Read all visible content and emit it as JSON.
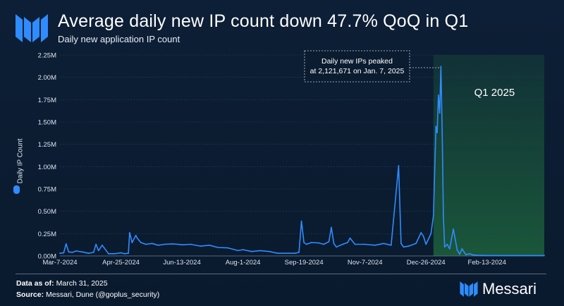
{
  "header": {
    "title": "Average daily new IP count down 47.7% QoQ in Q1",
    "subtitle": "Daily new application IP count"
  },
  "footer": {
    "data_as_of_label": "Data as of:",
    "data_as_of_value": "March 31, 2025",
    "source_label": "Source:",
    "source_value": "Messari, Dune (@goplus_security)"
  },
  "brand": {
    "name": "Messari"
  },
  "colors": {
    "line": "#2f8cff",
    "q1_shade": "#1f6b3e",
    "background": "#0b1c31",
    "grid": "#2a3d55"
  },
  "chart_data": {
    "type": "line",
    "title": "Average daily new IP count down 47.7% QoQ in Q1",
    "subtitle": "Daily new application IP count",
    "ylabel": "Daily IP Count",
    "xlabel": "",
    "y_ticks": [
      "0.00M",
      "0.25M",
      "0.50M",
      "0.75M",
      "1.00M",
      "1.25M",
      "1.50M",
      "1.75M",
      "2.00M",
      "2.25M"
    ],
    "x_ticks": [
      "Mar-7-2024",
      "Apr-25-2024",
      "Jun-13-2024",
      "Aug-1-2024",
      "Sep-19-2024",
      "Nov-7-2024",
      "Dec-26-2024",
      "Feb-13-2024"
    ],
    "ylim": [
      0,
      2250000
    ],
    "grid": true,
    "legend": "none",
    "series": [
      {
        "x": [
          "2024-03-07",
          "2024-03-10",
          "2024-03-12",
          "2024-03-14",
          "2024-03-17",
          "2024-03-20",
          "2024-03-25",
          "2024-03-30",
          "2024-04-03",
          "2024-04-05",
          "2024-04-07",
          "2024-04-10",
          "2024-04-15",
          "2024-04-20",
          "2024-04-25",
          "2024-04-28",
          "2024-05-01",
          "2024-05-02",
          "2024-05-04",
          "2024-05-07",
          "2024-05-08",
          "2024-05-11",
          "2024-05-15",
          "2024-05-20",
          "2024-05-25",
          "2024-05-30",
          "2024-06-05",
          "2024-06-10",
          "2024-06-13",
          "2024-06-20",
          "2024-06-28",
          "2024-07-05",
          "2024-07-12",
          "2024-07-20",
          "2024-07-28",
          "2024-08-01",
          "2024-08-08",
          "2024-08-15",
          "2024-08-22",
          "2024-08-29",
          "2024-09-05",
          "2024-09-12",
          "2024-09-15",
          "2024-09-17",
          "2024-09-19",
          "2024-09-21",
          "2024-09-25",
          "2024-10-01",
          "2024-10-05",
          "2024-10-09",
          "2024-10-11",
          "2024-10-13",
          "2024-10-15",
          "2024-10-20",
          "2024-10-24",
          "2024-10-26",
          "2024-10-30",
          "2024-11-07",
          "2024-11-15",
          "2024-11-22",
          "2024-11-28",
          "2024-12-04",
          "2024-12-06",
          "2024-12-08",
          "2024-12-12",
          "2024-12-18",
          "2024-12-22",
          "2024-12-24",
          "2024-12-26",
          "2024-12-28",
          "2024-12-30",
          "2025-01-01",
          "2025-01-03",
          "2025-01-04",
          "2025-01-05",
          "2025-01-06",
          "2025-01-07",
          "2025-01-08",
          "2025-01-09",
          "2025-01-10",
          "2025-01-12",
          "2025-01-14",
          "2025-01-17",
          "2025-01-20",
          "2025-01-22",
          "2025-01-24",
          "2025-01-27",
          "2025-01-30",
          "2025-02-02",
          "2025-02-05",
          "2025-02-13",
          "2025-02-25",
          "2025-03-10",
          "2025-03-31"
        ],
        "y": [
          30000,
          35000,
          135000,
          45000,
          40000,
          55000,
          45000,
          30000,
          40000,
          130000,
          60000,
          120000,
          25000,
          25000,
          35000,
          25000,
          30000,
          260000,
          150000,
          230000,
          200000,
          150000,
          130000,
          140000,
          120000,
          130000,
          135000,
          130000,
          125000,
          130000,
          110000,
          120000,
          95000,
          90000,
          60000,
          70000,
          50000,
          60000,
          50000,
          30000,
          30000,
          30000,
          40000,
          390000,
          150000,
          130000,
          150000,
          145000,
          130000,
          160000,
          320000,
          140000,
          100000,
          130000,
          150000,
          200000,
          130000,
          130000,
          120000,
          140000,
          120000,
          1010000,
          140000,
          100000,
          110000,
          140000,
          260000,
          220000,
          130000,
          190000,
          250000,
          450000,
          1450000,
          1380000,
          1800000,
          1600000,
          2121671,
          1400000,
          450000,
          100000,
          130000,
          80000,
          300000,
          70000,
          20000,
          80000,
          15000,
          25000,
          10000,
          8000,
          5000,
          5000,
          5000,
          5000
        ]
      }
    ],
    "annotations": [
      {
        "text": "Daily new IPs peaked at 2,121,671 on Jan. 7, 2025",
        "x": "2025-01-07",
        "y": 2121671
      },
      {
        "text": "Q1 2025",
        "region": [
          "2025-01-01",
          "2025-03-31"
        ]
      }
    ]
  }
}
